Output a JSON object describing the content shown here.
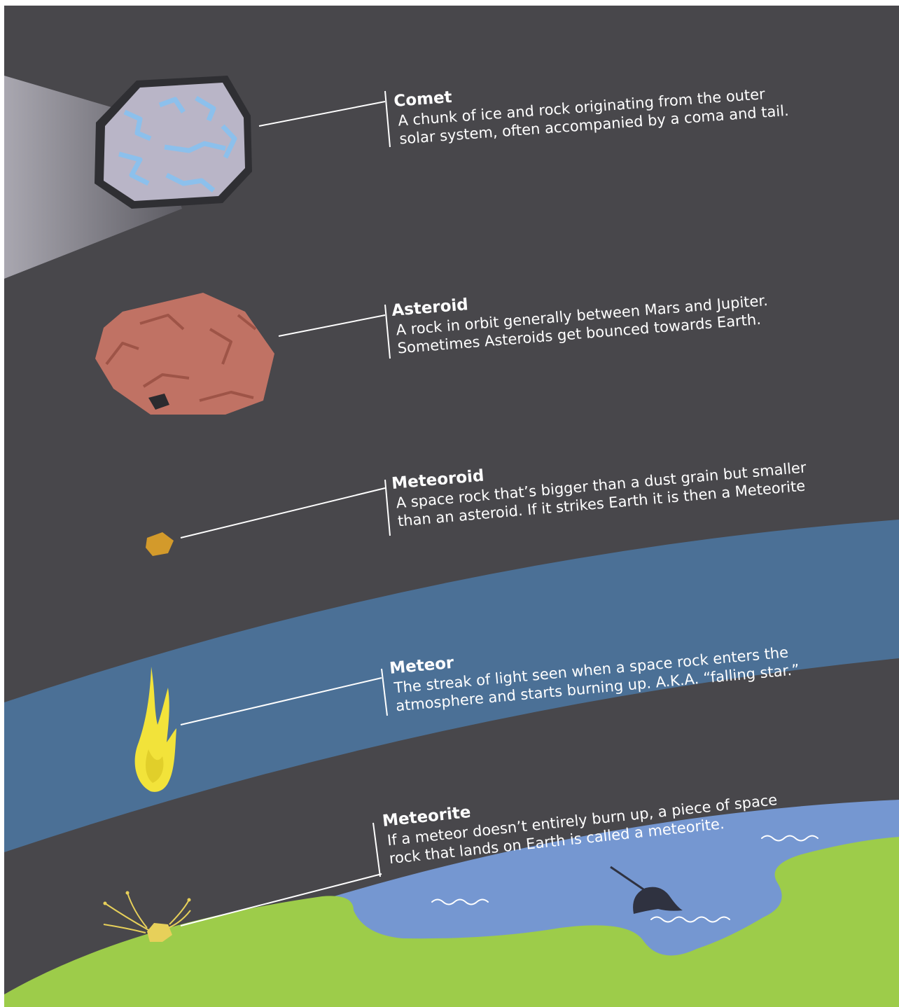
{
  "colors": {
    "space": "#48474b",
    "atmosphere_band": "#4b7096",
    "ocean": "#7597d1",
    "land": "#9dcc4a",
    "comet_body": "#b9b5c7",
    "comet_ice": "#8cc0ec",
    "asteroid": "#c07264",
    "meteoroid": "#d39a2b",
    "meteor_flame": "#f2e33a",
    "meteorite": "#e7d05a",
    "text": "#ffffff"
  },
  "entries": [
    {
      "id": "comet",
      "icon": "comet-icon",
      "title": "Comet",
      "lines": [
        "A chunk of ice and rock originating from the outer",
        "solar system, often  accompanied by a coma and tail."
      ]
    },
    {
      "id": "asteroid",
      "icon": "asteroid-icon",
      "title": "Asteroid",
      "lines": [
        "A rock in orbit generally between Mars and Jupiter.",
        "Sometimes Asteroids get bounced towards Earth."
      ]
    },
    {
      "id": "meteoroid",
      "icon": "meteoroid-icon",
      "title": "Meteoroid",
      "lines": [
        "A space rock that’s bigger than a dust grain but smaller",
        "than an asteroid. If it strikes Earth it is then a Meteorite"
      ]
    },
    {
      "id": "meteor",
      "icon": "meteor-flame-icon",
      "title": "Meteor",
      "lines": [
        "The streak of light seen when a space rock enters the",
        "atmosphere and starts burning up. A.K.A. “falling star.”"
      ]
    },
    {
      "id": "meteorite",
      "icon": "meteorite-icon",
      "title": "Meteorite",
      "lines": [
        "If a meteor doesn’t entirely burn up, a piece of space",
        "rock that lands on Earth is called a meteorite."
      ]
    }
  ]
}
